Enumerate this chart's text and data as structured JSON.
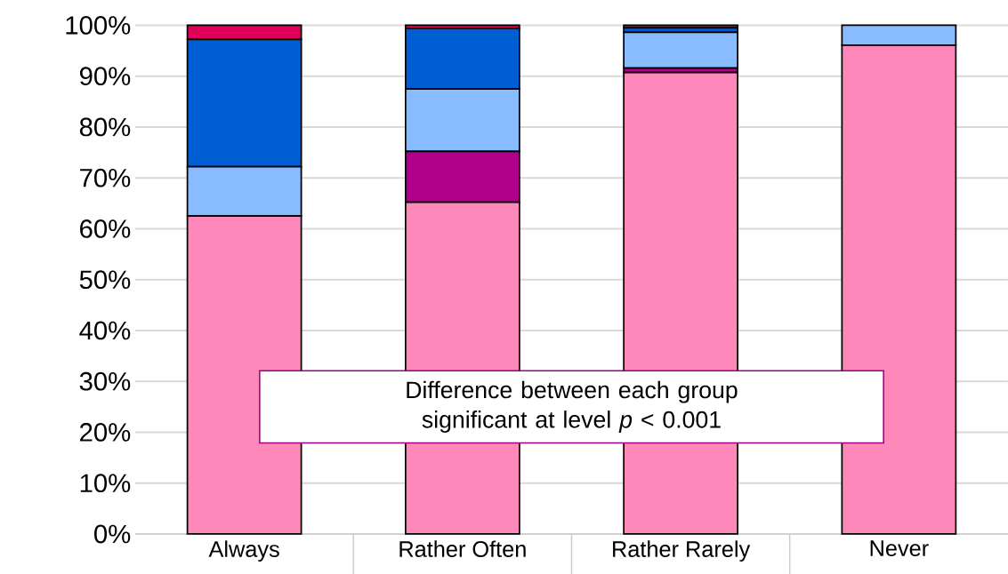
{
  "chart_data": {
    "type": "bar",
    "stacked": true,
    "categories": [
      "Always",
      "Rather Often",
      "Rather Rarely",
      "Never"
    ],
    "series": [
      {
        "color": "#ff88bb",
        "values": [
          62.5,
          65.2,
          90.7,
          96.1
        ]
      },
      {
        "color": "#b0008b",
        "values": [
          0,
          10.0,
          0.9,
          0
        ]
      },
      {
        "color": "#88bbff",
        "values": [
          9.7,
          12.3,
          7.0,
          3.9
        ]
      },
      {
        "color": "#005ed4",
        "values": [
          25.0,
          11.9,
          0.9,
          0
        ]
      },
      {
        "color": "#e0005a",
        "values": [
          2.8,
          0.6,
          0.5,
          0
        ]
      }
    ],
    "ylim": [
      0,
      100
    ],
    "yticks": [
      {
        "value": 0,
        "label": "0%"
      },
      {
        "value": 10,
        "label": "10%"
      },
      {
        "value": 20,
        "label": "20%"
      },
      {
        "value": 30,
        "label": "30%"
      },
      {
        "value": 40,
        "label": "40%"
      },
      {
        "value": 50,
        "label": "50%"
      },
      {
        "value": 60,
        "label": "60%"
      },
      {
        "value": 70,
        "label": "70%"
      },
      {
        "value": 80,
        "label": "80%"
      },
      {
        "value": 90,
        "label": "90%"
      },
      {
        "value": 100,
        "label": "100%"
      }
    ],
    "grid": "y",
    "annotations": [
      "Difference between each group significant at level *p* < 0.001"
    ]
  }
}
